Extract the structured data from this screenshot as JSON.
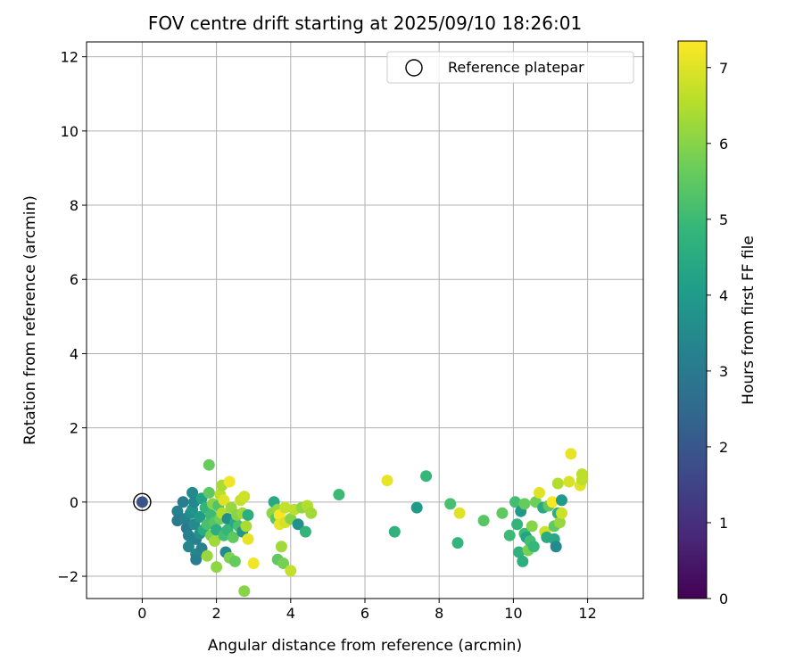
{
  "chart_data": {
    "type": "scatter",
    "title": "FOV centre drift starting at 2025/09/10 18:26:01",
    "xlabel": "Angular distance from reference (arcmin)",
    "ylabel": "Rotation from reference (arcmin)",
    "xlim": [
      -1.5,
      13.5
    ],
    "ylim": [
      -2.6,
      12.4
    ],
    "x_ticks": [
      0,
      2,
      4,
      6,
      8,
      10,
      12
    ],
    "x_tick_labels": [
      "0",
      "2",
      "4",
      "6",
      "8",
      "10",
      "12"
    ],
    "y_ticks": [
      -2,
      0,
      2,
      4,
      6,
      8,
      10,
      12
    ],
    "y_tick_labels": [
      "−2",
      "0",
      "2",
      "4",
      "6",
      "8",
      "10",
      "12"
    ],
    "grid": true,
    "legend": {
      "position": "top-right",
      "entries": [
        "Reference platepar"
      ]
    },
    "reference_point": {
      "name": "Reference platepar",
      "x": 0,
      "y": 0,
      "hours": 1.9
    },
    "colorbar": {
      "label": "Hours from first FF file",
      "colormap": "viridis",
      "range": [
        0,
        7.35
      ],
      "ticks": [
        0,
        1,
        2,
        3,
        4,
        5,
        6,
        7
      ],
      "tick_labels": [
        "0",
        "1",
        "2",
        "3",
        "4",
        "5",
        "6",
        "7"
      ]
    },
    "colormap_stops": [
      "#440154",
      "#482878",
      "#3e4989",
      "#31688e",
      "#26828e",
      "#1f9e89",
      "#35b779",
      "#6ece58",
      "#b5de2b",
      "#fde725"
    ],
    "points": [
      [
        0.95,
        -0.25,
        3.2
      ],
      [
        0.95,
        -0.5,
        3.0
      ],
      [
        1.1,
        0.0,
        3.1
      ],
      [
        1.15,
        -0.45,
        3.3
      ],
      [
        1.2,
        -0.7,
        3.0
      ],
      [
        1.25,
        -0.9,
        3.2
      ],
      [
        1.25,
        -1.2,
        3.4
      ],
      [
        1.3,
        -0.3,
        3.6
      ],
      [
        1.35,
        0.25,
        3.5
      ],
      [
        1.35,
        -0.2,
        3.8
      ],
      [
        1.4,
        0.0,
        3.4
      ],
      [
        1.4,
        -0.6,
        3.5
      ],
      [
        1.45,
        -1.0,
        3.2
      ],
      [
        1.45,
        -1.4,
        3.4
      ],
      [
        1.45,
        -1.55,
        3.1
      ],
      [
        1.55,
        -0.85,
        3.7
      ],
      [
        1.55,
        -0.4,
        4.0
      ],
      [
        1.6,
        -1.25,
        3.3
      ],
      [
        1.6,
        0.1,
        4.2
      ],
      [
        1.65,
        -0.75,
        4.5
      ],
      [
        1.7,
        -0.15,
        4.8
      ],
      [
        1.75,
        -0.6,
        5.2
      ],
      [
        1.75,
        -1.45,
        6.2
      ],
      [
        1.8,
        1.0,
        5.6
      ],
      [
        1.8,
        0.25,
        5.5
      ],
      [
        1.85,
        -0.35,
        5.0
      ],
      [
        1.85,
        -0.9,
        5.8
      ],
      [
        1.9,
        -0.05,
        6.0
      ],
      [
        1.95,
        -0.55,
        5.4
      ],
      [
        1.95,
        -1.05,
        6.3
      ],
      [
        2.0,
        -1.75,
        6.1
      ],
      [
        2.0,
        -0.75,
        4.6
      ],
      [
        2.05,
        -0.1,
        5.3
      ],
      [
        2.1,
        -0.45,
        5.7
      ],
      [
        2.1,
        0.2,
        6.6
      ],
      [
        2.15,
        -0.3,
        6.5
      ],
      [
        2.15,
        0.45,
        6.4
      ],
      [
        2.2,
        0.05,
        7.0
      ],
      [
        2.2,
        -0.9,
        5.1
      ],
      [
        2.25,
        -1.35,
        3.5
      ],
      [
        2.3,
        -0.45,
        3.6
      ],
      [
        2.3,
        -0.75,
        4.9
      ],
      [
        2.35,
        0.55,
        7.2
      ],
      [
        2.35,
        -1.5,
        5.9
      ],
      [
        2.4,
        -0.15,
        6.2
      ],
      [
        2.45,
        -0.95,
        5.5
      ],
      [
        2.5,
        -1.6,
        5.6
      ],
      [
        2.5,
        -0.55,
        4.4
      ],
      [
        2.55,
        -0.35,
        6.0
      ],
      [
        2.6,
        -0.65,
        5.2
      ],
      [
        2.65,
        0.05,
        6.7
      ],
      [
        2.7,
        -0.3,
        6.3
      ],
      [
        2.7,
        -0.8,
        3.9
      ],
      [
        2.75,
        0.15,
        6.8
      ],
      [
        2.75,
        -2.4,
        6.0
      ],
      [
        2.8,
        -0.65,
        6.4
      ],
      [
        2.85,
        -0.35,
        4.6
      ],
      [
        2.85,
        -1.0,
        7.1
      ],
      [
        3.0,
        -1.65,
        7.2
      ],
      [
        3.5,
        -0.3,
        6.1
      ],
      [
        3.55,
        0.0,
        4.4
      ],
      [
        3.6,
        -0.45,
        5.4
      ],
      [
        3.65,
        -0.2,
        6.2
      ],
      [
        3.65,
        -1.55,
        5.5
      ],
      [
        3.7,
        -0.35,
        7.3
      ],
      [
        3.7,
        -0.6,
        7.1
      ],
      [
        3.75,
        -1.2,
        6.3
      ],
      [
        3.8,
        -1.65,
        5.8
      ],
      [
        3.85,
        -0.55,
        6.9
      ],
      [
        3.85,
        -0.15,
        6.7
      ],
      [
        4.0,
        -0.45,
        6.0
      ],
      [
        4.0,
        -1.85,
        6.7
      ],
      [
        4.1,
        -0.2,
        6.6
      ],
      [
        4.2,
        -0.6,
        3.7
      ],
      [
        4.3,
        -0.15,
        6.1
      ],
      [
        4.4,
        -0.8,
        4.8
      ],
      [
        4.45,
        -0.1,
        6.5
      ],
      [
        4.55,
        -0.3,
        6.3
      ],
      [
        5.3,
        0.2,
        5.0
      ],
      [
        6.6,
        0.58,
        7.1
      ],
      [
        6.8,
        -0.8,
        4.7
      ],
      [
        7.4,
        -0.15,
        4.0
      ],
      [
        7.65,
        0.7,
        4.9
      ],
      [
        8.3,
        -0.05,
        5.2
      ],
      [
        8.5,
        -1.1,
        4.8
      ],
      [
        8.55,
        -0.3,
        7.0
      ],
      [
        9.2,
        -0.5,
        5.4
      ],
      [
        9.7,
        -0.3,
        5.5
      ],
      [
        9.9,
        -0.9,
        5.0
      ],
      [
        10.05,
        0.0,
        5.1
      ],
      [
        10.1,
        -0.6,
        4.8
      ],
      [
        10.15,
        -1.35,
        4.7
      ],
      [
        10.2,
        -0.25,
        3.9
      ],
      [
        10.25,
        -1.6,
        4.6
      ],
      [
        10.3,
        -0.85,
        5.0
      ],
      [
        10.3,
        -0.05,
        5.6
      ],
      [
        10.35,
        -0.95,
        4.2
      ],
      [
        10.4,
        -1.3,
        5.8
      ],
      [
        10.45,
        -1.05,
        5.1
      ],
      [
        10.5,
        -0.65,
        6.0
      ],
      [
        10.55,
        -1.2,
        4.9
      ],
      [
        10.6,
        0.0,
        5.7
      ],
      [
        10.7,
        0.25,
        7.0
      ],
      [
        10.8,
        -0.15,
        4.4
      ],
      [
        10.85,
        -0.8,
        6.8
      ],
      [
        10.9,
        -0.95,
        4.5
      ],
      [
        10.95,
        -0.1,
        5.5
      ],
      [
        11.05,
        0.0,
        7.3
      ],
      [
        11.1,
        -0.65,
        5.5
      ],
      [
        11.1,
        -1.0,
        4.4
      ],
      [
        11.15,
        -1.2,
        3.5
      ],
      [
        11.2,
        0.5,
        6.5
      ],
      [
        11.2,
        -0.3,
        4.6
      ],
      [
        11.25,
        -0.55,
        6.2
      ],
      [
        11.3,
        0.05,
        4.0
      ],
      [
        11.3,
        -0.3,
        6.8
      ],
      [
        11.5,
        0.55,
        6.9
      ],
      [
        11.55,
        1.3,
        7.1
      ],
      [
        11.8,
        0.45,
        7.0
      ],
      [
        11.85,
        0.75,
        6.6
      ],
      [
        11.85,
        0.6,
        6.6
      ]
    ]
  }
}
